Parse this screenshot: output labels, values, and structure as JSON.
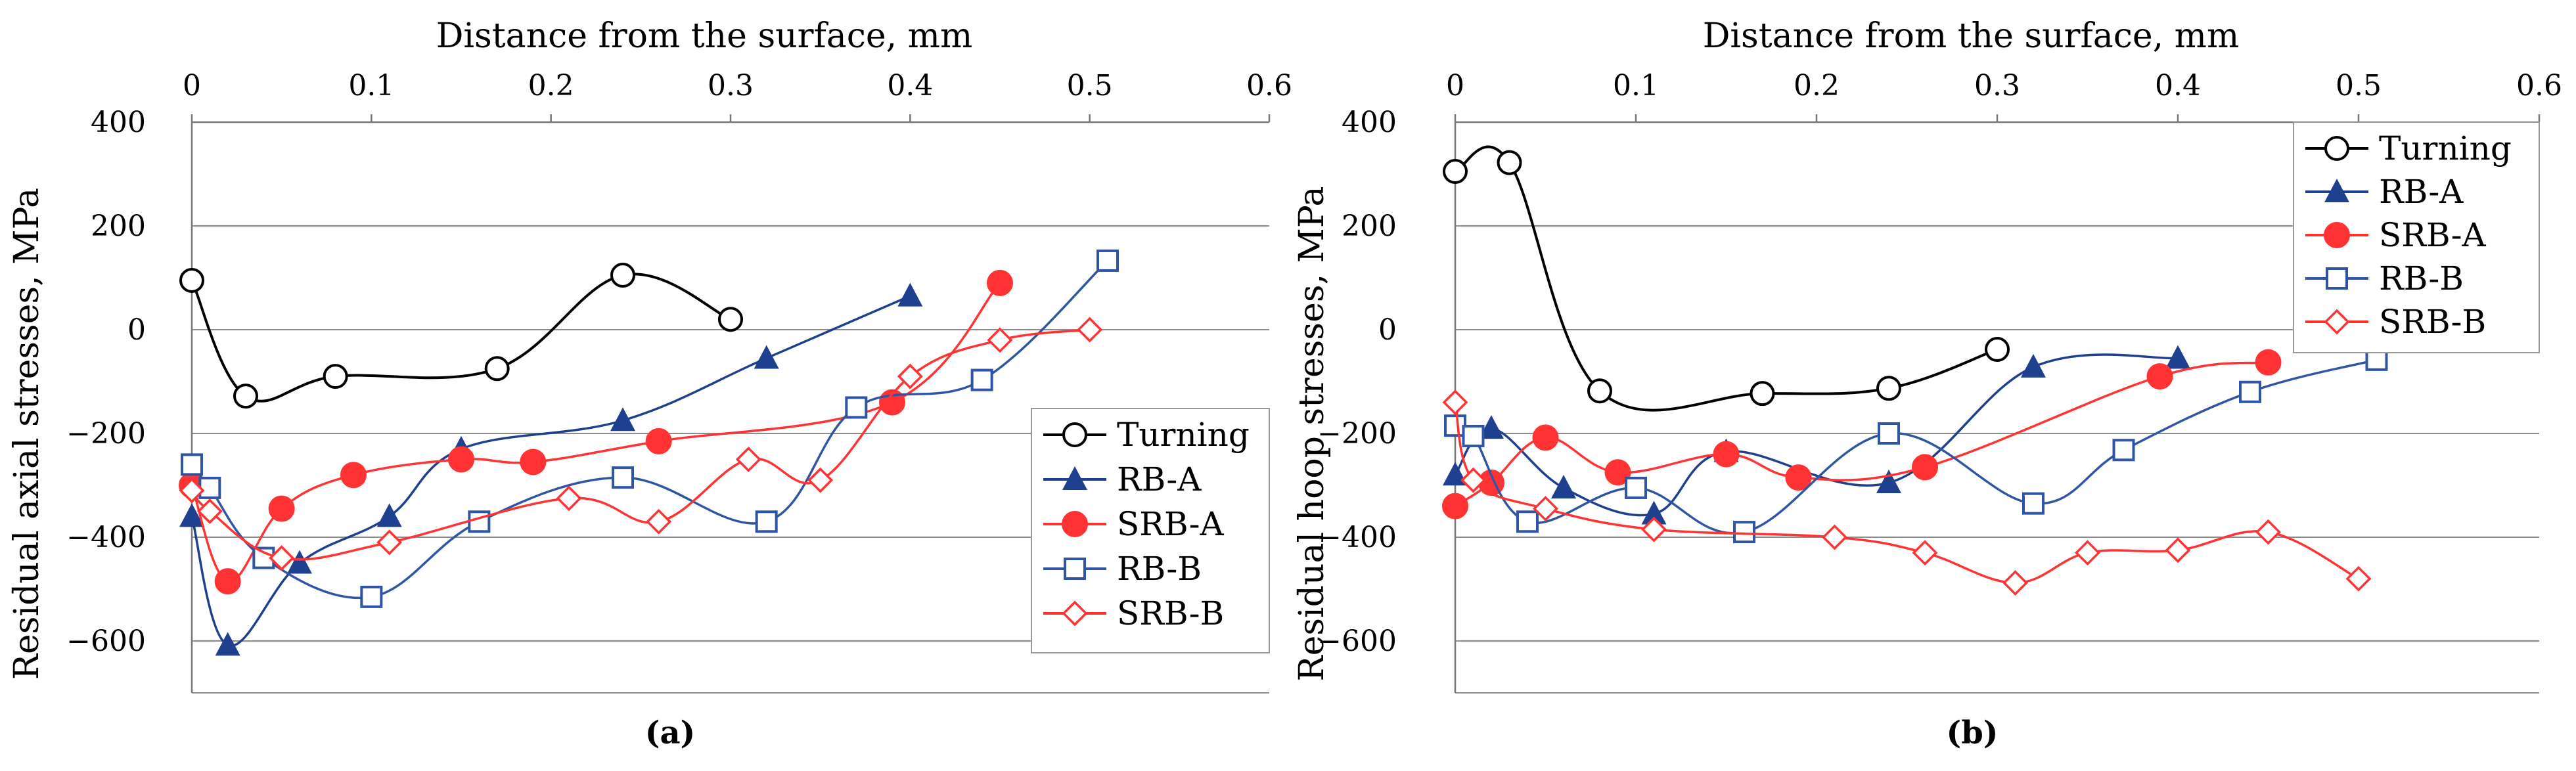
{
  "figure_labels": {
    "a": "(a)",
    "b": "(b)"
  },
  "colors": {
    "turning": "#000000",
    "rb_a": "#1f3f8f",
    "srb_a": "#ff3333",
    "rb_b": "#2f55a4",
    "srb_b": "#ff3333",
    "grid": "#8c8c8c"
  },
  "chart_data": [
    {
      "id": "a",
      "type": "line",
      "title": "",
      "xlabel": "Distance from the surface, mm",
      "ylabel": "Residual axial stresses, MPa",
      "xlim": [
        0,
        0.6
      ],
      "ylim": [
        -700,
        400
      ],
      "xticks": [
        0,
        0.1,
        0.2,
        0.3,
        0.4,
        0.5,
        0.6
      ],
      "xtick_labels": [
        "0",
        "0.1",
        "0.2",
        "0.3",
        "0.4",
        "0.5",
        "0.6"
      ],
      "yticks": [
        400,
        200,
        0,
        -200,
        -400,
        -600
      ],
      "ytick_labels": [
        "400",
        "200",
        "0",
        "−200",
        "−400",
        "−600"
      ],
      "grid": true,
      "legend_position": "bottom-right",
      "series": [
        {
          "name": "Turning",
          "marker": "circle-open",
          "color_key": "turning",
          "x": [
            0,
            0.03,
            0.08,
            0.17,
            0.24,
            0.3
          ],
          "y": [
            95,
            -128,
            -90,
            -75,
            105,
            20
          ]
        },
        {
          "name": "RB-A",
          "marker": "triangle-filled",
          "color_key": "rb_a",
          "x": [
            0,
            0.02,
            0.06,
            0.11,
            0.15,
            0.24,
            0.32,
            0.4
          ],
          "y": [
            -360,
            -608,
            -450,
            -360,
            -230,
            -175,
            -55,
            65
          ]
        },
        {
          "name": "SRB-A",
          "marker": "circle-filled",
          "color_key": "srb_a",
          "x": [
            0,
            0.02,
            0.05,
            0.09,
            0.15,
            0.19,
            0.26,
            0.39,
            0.45
          ],
          "y": [
            -300,
            -485,
            -345,
            -280,
            -250,
            -255,
            -215,
            -140,
            90
          ]
        },
        {
          "name": "RB-B",
          "marker": "square-open",
          "color_key": "rb_b",
          "x": [
            0,
            0.01,
            0.04,
            0.1,
            0.16,
            0.24,
            0.32,
            0.37,
            0.44,
            0.51
          ],
          "y": [
            -260,
            -305,
            -440,
            -515,
            -370,
            -285,
            -370,
            -150,
            -97,
            133
          ]
        },
        {
          "name": "SRB-B",
          "marker": "diamond-open",
          "color_key": "srb_b",
          "x": [
            0,
            0.01,
            0.05,
            0.11,
            0.21,
            0.26,
            0.31,
            0.35,
            0.4,
            0.45,
            0.5
          ],
          "y": [
            -310,
            -350,
            -440,
            -410,
            -325,
            -370,
            -250,
            -290,
            -90,
            -20,
            0
          ]
        }
      ]
    },
    {
      "id": "b",
      "type": "line",
      "title": "",
      "xlabel": "Distance from the surface, mm",
      "ylabel": "Residual hoop stresses, MPa",
      "xlim": [
        0,
        0.6
      ],
      "ylim": [
        -700,
        400
      ],
      "xticks": [
        0,
        0.1,
        0.2,
        0.3,
        0.4,
        0.5,
        0.6
      ],
      "xtick_labels": [
        "0",
        "0.1",
        "0.2",
        "0.3",
        "0.4",
        "0.5",
        "0.6"
      ],
      "yticks": [
        400,
        200,
        0,
        -200,
        -400,
        -600
      ],
      "ytick_labels": [
        "400",
        "200",
        "0",
        "−200",
        "−400",
        "−600"
      ],
      "grid": true,
      "legend_position": "top-right",
      "series": [
        {
          "name": "Turning",
          "marker": "circle-open",
          "color_key": "turning",
          "x": [
            0,
            0.03,
            0.08,
            0.17,
            0.24,
            0.3
          ],
          "y": [
            305,
            322,
            -118,
            -123,
            -113,
            -38
          ]
        },
        {
          "name": "RB-A",
          "marker": "triangle-filled",
          "color_key": "rb_a",
          "x": [
            0,
            0.02,
            0.06,
            0.11,
            0.15,
            0.24,
            0.32,
            0.4
          ],
          "y": [
            -280,
            -190,
            -305,
            -355,
            -235,
            -295,
            -72,
            -55
          ]
        },
        {
          "name": "SRB-A",
          "marker": "circle-filled",
          "color_key": "srb_a",
          "x": [
            0,
            0.02,
            0.05,
            0.09,
            0.15,
            0.19,
            0.26,
            0.39,
            0.45
          ],
          "y": [
            -340,
            -295,
            -208,
            -275,
            -240,
            -285,
            -265,
            -90,
            -63
          ]
        },
        {
          "name": "RB-B",
          "marker": "square-open",
          "color_key": "rb_b",
          "x": [
            0,
            0.01,
            0.04,
            0.1,
            0.16,
            0.24,
            0.32,
            0.37,
            0.44,
            0.51
          ],
          "y": [
            -185,
            -205,
            -370,
            -305,
            -390,
            -200,
            -335,
            -232,
            -120,
            -58
          ]
        },
        {
          "name": "SRB-B",
          "marker": "diamond-open",
          "color_key": "srb_b",
          "x": [
            0,
            0.01,
            0.05,
            0.11,
            0.21,
            0.26,
            0.31,
            0.35,
            0.4,
            0.45,
            0.5
          ],
          "y": [
            -140,
            -290,
            -345,
            -385,
            -400,
            -430,
            -488,
            -430,
            -425,
            -390,
            -480
          ]
        }
      ]
    }
  ]
}
